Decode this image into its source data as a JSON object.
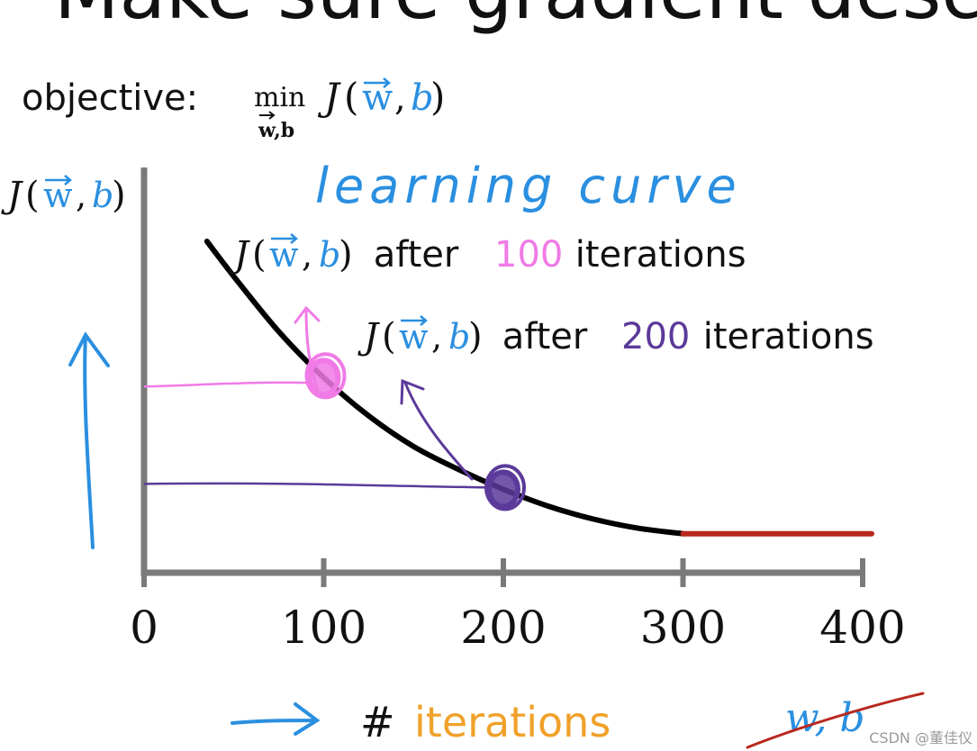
{
  "header_fragment": "Make sure gradient desce",
  "objective": {
    "label": "objective:",
    "min_word": "min",
    "min_sub": "w,b",
    "J": "J",
    "lparen": "(",
    "w": "w",
    "comma": ",",
    "b": "b",
    "rparen": ")"
  },
  "y_label": {
    "J": "J",
    "lparen": "(",
    "w": "w",
    "comma": ",",
    "b": "b",
    "rparen": ")"
  },
  "handwritten_title": "learning curve",
  "annotations": [
    {
      "prefix_J": "J",
      "lparen": "(",
      "w": "w",
      "comma": ",",
      "b": "b",
      "rparen": ")",
      "after": " after ",
      "value": "100",
      "suffix": " iterations",
      "value_color": "#f07ae6"
    },
    {
      "prefix_J": "J",
      "lparen": "(",
      "w": "w",
      "comma": ",",
      "b": "b",
      "rparen": ")",
      "after": " after ",
      "value": "200",
      "suffix": " iterations",
      "value_color": "#5b3a9a"
    }
  ],
  "x_label": {
    "hash": "#",
    "word": "iterations"
  },
  "struck_text": "w, b",
  "watermark": "CSDN @董佳仪",
  "colors": {
    "blue": "#2a8fe0",
    "pink": "#f07ae6",
    "purple": "#5b3a9a",
    "orange": "#f0a12a",
    "red": "#b8281e",
    "axis": "#7a7a7a",
    "curve": "#000000"
  },
  "chart_data": {
    "type": "line",
    "title": "learning curve",
    "xlabel": "# iterations",
    "ylabel": "J(w,b)",
    "xlim": [
      0,
      400
    ],
    "xticks": [
      "0",
      "100",
      "200",
      "300",
      "400"
    ],
    "series": [
      {
        "x": [
          35,
          50,
          75,
          100,
          125,
          150,
          175,
          200,
          225,
          250,
          275,
          300
        ],
        "y": [
          1.0,
          0.885,
          0.705,
          0.555,
          0.43,
          0.33,
          0.255,
          0.19,
          0.135,
          0.093,
          0.063,
          0.045
        ],
        "color": "#000000"
      },
      {
        "x": [
          300,
          405
        ],
        "y": [
          0.045,
          0.045
        ],
        "color": "#b8281e"
      }
    ],
    "markers": [
      {
        "x": 100,
        "y": 0.555,
        "color": "#f07ae6"
      },
      {
        "x": 200,
        "y": 0.19,
        "color": "#5b3a9a"
      }
    ]
  }
}
